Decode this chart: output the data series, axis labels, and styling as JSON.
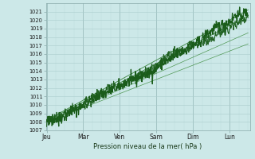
{
  "xlabel": "Pression niveau de la mer( hPa )",
  "bg_color": "#cce8e8",
  "grid_color_major": "#aacccc",
  "grid_color_minor": "#bbdddd",
  "line_color_dark": "#1a5c1a",
  "line_color_mid": "#2a7a2a",
  "line_color_thin": "#3a8a3a",
  "ylim": [
    1007,
    1022
  ],
  "yticks": [
    1007,
    1008,
    1009,
    1010,
    1011,
    1012,
    1013,
    1014,
    1015,
    1016,
    1017,
    1018,
    1019,
    1020,
    1021
  ],
  "day_labels": [
    "Jeu",
    "Mar",
    "Ven",
    "Sam",
    "Dim",
    "Lun"
  ],
  "day_positions": [
    0.0,
    1.0,
    2.0,
    3.0,
    4.0,
    5.0
  ],
  "xlim": [
    -0.02,
    5.55
  ],
  "num_points": 500
}
